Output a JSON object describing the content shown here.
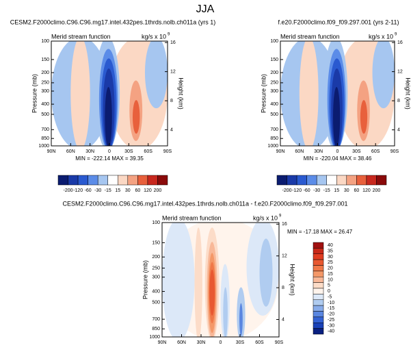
{
  "title": "JJA",
  "chart_data": [
    {
      "type": "contour",
      "subtitle": "CESM2.F2000climo.C96.C96.mg17.intel.432pes.1thrds.nolb.ch011a (yrs 1)",
      "left_label": "Merid stream function",
      "units": "kg/s x 10",
      "units_power": "9",
      "ylabel": "Pressure (mb)",
      "y2label": "Height (km)",
      "stats": "MIN = -222.14   MAX = 39.35",
      "ylim": [
        1000,
        100
      ],
      "log_y": true,
      "yticks": [
        100,
        150,
        200,
        250,
        300,
        400,
        500,
        700,
        850,
        1000
      ],
      "y2lim": [
        1.8,
        16.2
      ],
      "y2ticks": [
        4,
        8,
        12,
        16
      ],
      "xlim": [
        90,
        -90
      ],
      "xticks": [
        {
          "value": 90,
          "label": "90N"
        },
        {
          "value": 60,
          "label": "60N"
        },
        {
          "value": 30,
          "label": "30N"
        },
        0,
        {
          "value": -30,
          "label": "30S"
        },
        {
          "value": -60,
          "label": "60S"
        },
        {
          "value": -90,
          "label": "90S"
        }
      ],
      "colorbar": "horizontal",
      "levels": [
        -200,
        -120,
        -60,
        -30,
        -15,
        15,
        30,
        60,
        120,
        200
      ],
      "colors": [
        "#0b1c70",
        "#1a3aa8",
        "#2a5ad0",
        "#5b8ce8",
        "#a6c6f0",
        "#ffffff",
        "#fbd8c4",
        "#f4a282",
        "#e8603c",
        "#c8281e",
        "#8a0a0a"
      ]
    },
    {
      "type": "contour",
      "subtitle": "f.e20.F2000climo.f09_f09.297.001 (yrs 2-11)",
      "left_label": "Merid stream function",
      "units": "kg/s x 10",
      "units_power": "9",
      "ylabel": "Pressure (mb)",
      "y2label": "Height (km)",
      "stats": "MIN = -220.04   MAX = 38.46",
      "ylim": [
        1000,
        100
      ],
      "log_y": true,
      "yticks": [
        100,
        150,
        200,
        250,
        300,
        400,
        500,
        700,
        850,
        1000
      ],
      "y2lim": [
        1.8,
        16.2
      ],
      "y2ticks": [
        4,
        8,
        12,
        16
      ],
      "xlim": [
        90,
        -90
      ],
      "xticks": [
        {
          "value": 90,
          "label": "90N"
        },
        {
          "value": 60,
          "label": "60N"
        },
        {
          "value": 30,
          "label": "30N"
        },
        0,
        {
          "value": -30,
          "label": "30S"
        },
        {
          "value": -60,
          "label": "60S"
        },
        {
          "value": -90,
          "label": "90S"
        }
      ],
      "colorbar": "horizontal",
      "levels": [
        -200,
        -120,
        -60,
        -30,
        -15,
        15,
        30,
        60,
        120,
        200
      ],
      "colors": [
        "#0b1c70",
        "#1a3aa8",
        "#2a5ad0",
        "#5b8ce8",
        "#a6c6f0",
        "#ffffff",
        "#fbd8c4",
        "#f4a282",
        "#e8603c",
        "#c8281e",
        "#8a0a0a"
      ]
    },
    {
      "type": "contour",
      "subtitle": "CESM2.F2000climo.C96.C96.mg17.intel.432pes.1thrds.nolb.ch011a - f.e20.F2000climo.f09_f09.297.001",
      "left_label": "Merid stream function",
      "units": "kg/s x 10",
      "units_power": "9",
      "ylabel": "Pressure (mb)",
      "y2label": "Height (km)",
      "stats": "MIN = -17.18   MAX = 26.47",
      "ylim": [
        1000,
        100
      ],
      "log_y": true,
      "yticks": [
        100,
        150,
        200,
        250,
        300,
        400,
        500,
        700,
        850,
        1000
      ],
      "y2lim": [
        1.8,
        16.2
      ],
      "y2ticks": [
        4,
        8,
        12,
        16
      ],
      "xlim": [
        90,
        -90
      ],
      "xticks": [
        {
          "value": 90,
          "label": "90N"
        },
        {
          "value": 60,
          "label": "60N"
        },
        {
          "value": 30,
          "label": "30N"
        },
        0,
        {
          "value": -30,
          "label": "30S"
        },
        {
          "value": -60,
          "label": "60S"
        },
        {
          "value": -90,
          "label": "90S"
        }
      ],
      "colorbar": "vertical",
      "levels": [
        40,
        35,
        30,
        25,
        20,
        15,
        10,
        5,
        0,
        -5,
        -10,
        -15,
        -20,
        -25,
        -30,
        -40
      ],
      "colors": [
        "#a01010",
        "#c82818",
        "#e03c20",
        "#e85830",
        "#f07848",
        "#f49868",
        "#f8b898",
        "#fcdcc8",
        "#fff4ec",
        "#dce8f8",
        "#b0ccf0",
        "#88acea",
        "#5a86e0",
        "#3462d4",
        "#1a42b8",
        "#0a2080"
      ]
    }
  ]
}
